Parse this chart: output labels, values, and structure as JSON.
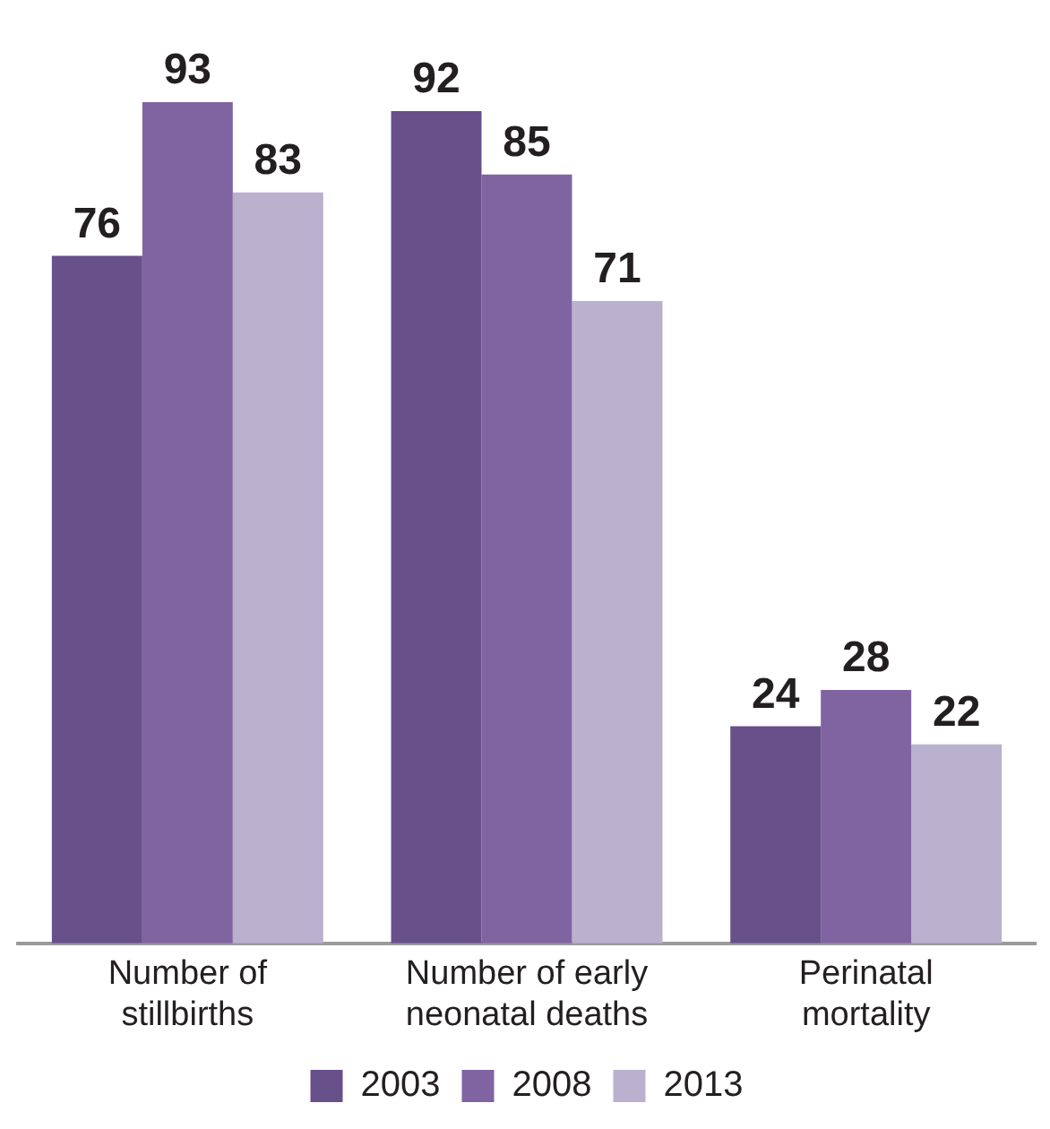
{
  "chart_data": {
    "type": "bar",
    "categories": [
      "Number of stillbirths",
      "Number of early neonatal deaths",
      "Perinatal mortality"
    ],
    "series": [
      {
        "name": "2003",
        "color": "#68508a",
        "values": [
          76,
          92,
          24
        ]
      },
      {
        "name": "2008",
        "color": "#8064a2",
        "values": [
          93,
          85,
          28
        ]
      },
      {
        "name": "2013",
        "color": "#b9b1cd",
        "values": [
          83,
          71,
          22
        ]
      }
    ],
    "data_labels": true,
    "legend": "bottom",
    "grid": false,
    "tick_labels": "x"
  }
}
